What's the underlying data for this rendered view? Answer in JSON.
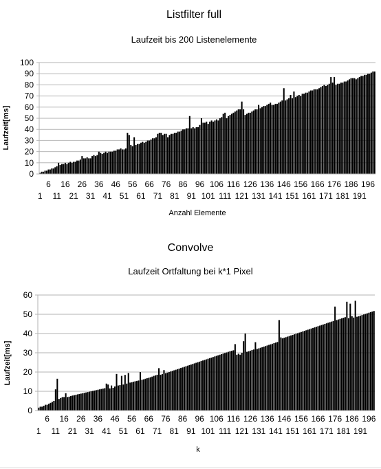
{
  "chart_data": [
    {
      "type": "bar",
      "title": "Listfilter full",
      "subtitle": "Laufzeit bis 200 Listenelemente",
      "xlabel": "Anzahl Elemente",
      "ylabel": "Laufzeit[ms]",
      "ylim": [
        0,
        100
      ],
      "yticks": [
        0,
        10,
        20,
        30,
        40,
        50,
        60,
        70,
        80,
        90,
        100
      ],
      "x_start": 1,
      "x_tick_step": 5,
      "grid": "horizontal",
      "bar_color": "#000000",
      "grid_color": "#b3b3b3",
      "values": [
        1,
        2,
        2,
        3,
        3,
        4,
        4,
        5,
        5,
        6,
        7,
        10,
        8,
        9,
        9,
        10,
        9,
        10,
        11,
        10,
        11,
        11,
        12,
        12,
        13,
        16,
        14,
        14,
        15,
        14,
        14,
        16,
        17,
        16,
        17,
        20,
        19,
        18,
        19,
        20,
        19,
        20,
        20,
        20,
        21,
        21,
        22,
        22,
        23,
        22,
        22,
        23,
        37,
        35,
        26,
        25,
        33,
        26,
        27,
        27,
        28,
        29,
        28,
        29,
        30,
        30,
        31,
        32,
        32,
        33,
        36,
        37,
        37,
        35,
        36,
        36,
        33,
        35,
        36,
        36,
        37,
        37,
        38,
        38,
        39,
        40,
        40,
        41,
        41,
        52,
        41,
        42,
        41,
        42,
        42,
        44,
        50,
        46,
        46,
        47,
        45,
        47,
        48,
        47,
        48,
        49,
        48,
        50,
        51,
        54,
        55,
        50,
        52,
        53,
        54,
        55,
        56,
        57,
        58,
        58,
        65,
        58,
        53,
        54,
        55,
        55,
        56,
        57,
        58,
        58,
        62,
        59,
        60,
        61,
        61,
        62,
        63,
        64,
        62,
        62,
        63,
        63,
        64,
        65,
        66,
        77,
        66,
        67,
        68,
        71,
        68,
        74,
        69,
        70,
        71,
        70,
        72,
        72,
        73,
        73,
        74,
        75,
        75,
        76,
        76,
        76,
        77,
        78,
        79,
        80,
        79,
        80,
        81,
        87,
        82,
        87,
        80,
        81,
        81,
        82,
        82,
        83,
        83,
        84,
        85,
        86,
        86,
        86,
        85,
        86,
        87,
        88,
        88,
        89,
        89,
        90,
        90,
        91,
        92,
        92
      ]
    },
    {
      "type": "bar",
      "title": "Convolve",
      "subtitle": "Laufzeit Ortfaltung bei k*1 Pixel",
      "xlabel": "k",
      "ylabel": "Laufzeit[ms]",
      "ylim": [
        0,
        60
      ],
      "yticks": [
        0,
        10,
        20,
        30,
        40,
        50,
        60
      ],
      "x_start": 1,
      "x_tick_step": 5,
      "grid": "horizontal",
      "bar_color": "#000000",
      "grid_color": "#b3b3b3",
      "values": [
        1.5,
        2,
        2,
        2.5,
        3,
        3,
        3.5,
        4,
        4.5,
        5,
        11,
        16.5,
        6,
        6.5,
        7,
        7,
        9,
        7,
        7.2,
        7.5,
        7.8,
        8,
        8.2,
        8.4,
        8.6,
        8.8,
        9,
        9.2,
        9.4,
        9.6,
        9.8,
        10,
        10.2,
        10.4,
        10.6,
        10.8,
        11,
        11.2,
        11.4,
        11.6,
        14,
        13.5,
        11.5,
        13,
        11.8,
        12.5,
        19,
        13,
        13.2,
        18,
        13.5,
        18.5,
        14,
        19.5,
        14.5,
        14.7,
        15,
        15.2,
        15.4,
        15.6,
        20,
        16,
        16.2,
        16.5,
        16.8,
        17,
        17.3,
        17.6,
        18,
        18.3,
        18.6,
        22,
        18.6,
        19,
        21,
        19.4,
        19.7,
        20,
        20.3,
        20.6,
        20.9,
        21.2,
        21.5,
        21.8,
        22.1,
        22.4,
        22.7,
        23,
        23.3,
        23.6,
        23.9,
        24.2,
        24.5,
        24.8,
        25.1,
        25.4,
        25.7,
        26,
        26.3,
        26.6,
        26.9,
        27.2,
        27.5,
        27.8,
        28.1,
        28.4,
        28.7,
        29,
        29.3,
        29.6,
        29.9,
        30.2,
        30.5,
        30.8,
        31,
        31.3,
        34.5,
        29,
        29.5,
        29,
        30,
        36,
        40,
        30.5,
        30.8,
        31.1,
        31.4,
        31.7,
        35.5,
        32,
        32.3,
        32.6,
        32.9,
        33.2,
        33.5,
        33.8,
        34.1,
        34.4,
        34.7,
        35,
        35.3,
        35.6,
        47,
        38,
        37.5,
        37.8,
        38.1,
        38.4,
        38.7,
        39,
        39.3,
        39.6,
        39.9,
        40.2,
        40.5,
        40.8,
        41.1,
        41.4,
        41.7,
        42,
        42.3,
        42.6,
        42.9,
        43.2,
        43.5,
        43.8,
        44.1,
        44.4,
        44.7,
        45,
        45.3,
        45.6,
        45.9,
        46.2,
        46.5,
        54,
        47,
        47.3,
        47.6,
        47.9,
        48.2,
        48.5,
        56.5,
        48,
        55.5,
        49,
        48.3,
        57,
        48.7,
        49,
        49.3,
        49.6,
        49.9,
        50.2,
        50.5,
        50.8,
        51.1,
        51.4,
        51.7
      ]
    }
  ]
}
